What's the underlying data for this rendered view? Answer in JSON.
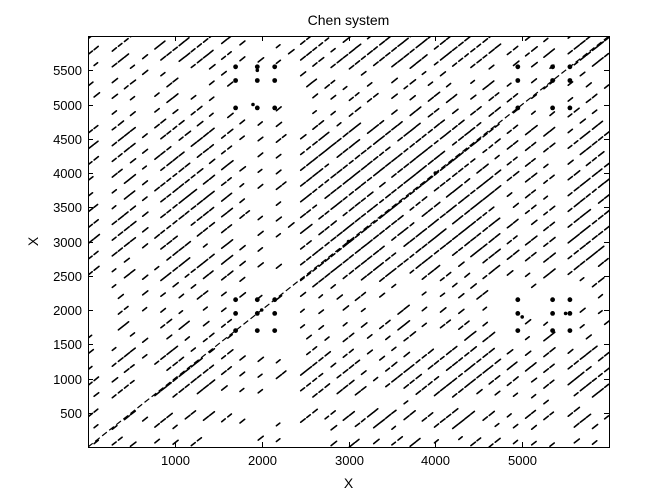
{
  "chart_data": {
    "type": "scatter",
    "title": "Chen system",
    "xlabel": "X",
    "ylabel": "X",
    "xlim": [
      0,
      6000
    ],
    "ylim": [
      0,
      6000
    ],
    "x_ticks": [
      1000,
      2000,
      3000,
      4000,
      5000
    ],
    "y_ticks": [
      500,
      1000,
      1500,
      2000,
      2500,
      3000,
      3500,
      4000,
      4500,
      5000,
      5500
    ],
    "grid": false,
    "legend": "none",
    "marker_color": "#000000",
    "background_color": "#ffffff",
    "description": "recurrence plot",
    "diagonal_line_spacing": 230,
    "white_band_centers": [
      180,
      250,
      350,
      600,
      700,
      1500,
      1700,
      1900,
      2100,
      2300,
      2400,
      4800,
      5000,
      5200,
      5400,
      5500
    ],
    "white_band_half_widths": [
      40,
      30,
      20,
      50,
      40,
      50,
      40,
      60,
      60,
      40,
      30,
      40,
      50,
      40,
      40,
      30
    ],
    "dense_cross_centers": [
      1700,
      1950,
      2150,
      4950,
      5350,
      5550
    ],
    "series": [
      {
        "values_sample": [
          [
            1700,
            1700
          ],
          [
            1950,
            1950
          ],
          [
            2150,
            2150
          ],
          [
            3000,
            3000
          ],
          [
            4000,
            4000
          ],
          [
            4950,
            4950
          ],
          [
            5350,
            5350
          ],
          [
            5550,
            5550
          ],
          [
            5000,
            1900
          ],
          [
            1900,
            5000
          ],
          [
            5500,
            1950
          ],
          [
            1950,
            5500
          ],
          [
            5550,
            4950
          ],
          [
            4950,
            5550
          ],
          [
            2000,
            2000
          ]
        ]
      }
    ]
  }
}
